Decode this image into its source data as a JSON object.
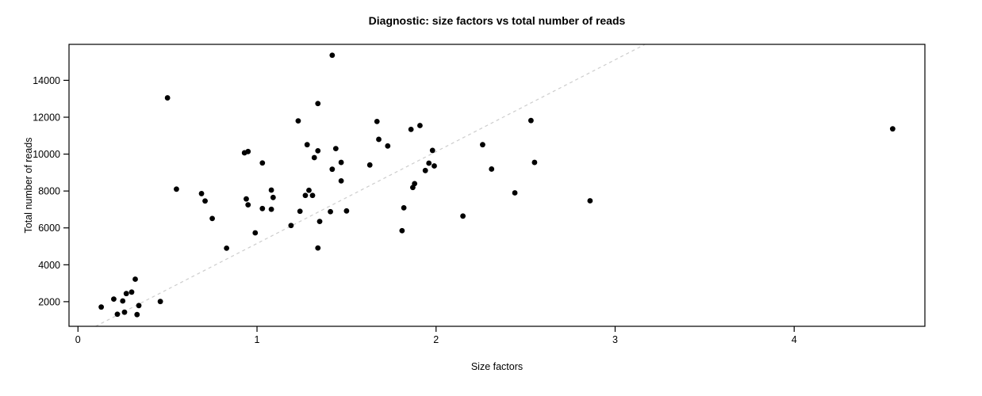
{
  "title": "Diagnostic: size factors vs total number of reads",
  "chart_data": {
    "type": "scatter",
    "title": "Diagnostic: size factors vs total number of reads",
    "xlabel": "Size factors",
    "ylabel": "Total number of reads",
    "xlim": [
      -0.05,
      4.73
    ],
    "ylim": [
      665,
      15950
    ],
    "x_ticks": [
      0,
      1,
      2,
      3,
      4
    ],
    "y_ticks": [
      2000,
      4000,
      6000,
      8000,
      10000,
      12000,
      14000
    ],
    "grid": false,
    "legend": "none",
    "point_color": "#000000",
    "point_radius": 3.4,
    "box_color": "#000000",
    "reference_line": {
      "style": "dashed",
      "color": "#cdcdcd",
      "intercept": 175,
      "slope": 4980
    },
    "points": [
      [
        0.13,
        1710
      ],
      [
        0.2,
        2140
      ],
      [
        0.25,
        2040
      ],
      [
        0.27,
        2440
      ],
      [
        0.3,
        2520
      ],
      [
        0.32,
        3220
      ],
      [
        0.34,
        1790
      ],
      [
        0.22,
        1320
      ],
      [
        0.26,
        1430
      ],
      [
        0.33,
        1300
      ],
      [
        0.46,
        2010
      ],
      [
        0.5,
        13050
      ],
      [
        0.55,
        8100
      ],
      [
        0.69,
        7860
      ],
      [
        0.71,
        7460
      ],
      [
        0.75,
        6510
      ],
      [
        0.83,
        4900
      ],
      [
        0.93,
        10070
      ],
      [
        0.95,
        10140
      ],
      [
        1.03,
        9520
      ],
      [
        0.94,
        7570
      ],
      [
        0.95,
        7250
      ],
      [
        0.99,
        5730
      ],
      [
        1.08,
        8050
      ],
      [
        1.09,
        7650
      ],
      [
        1.03,
        7050
      ],
      [
        1.08,
        7010
      ],
      [
        1.42,
        15360
      ],
      [
        1.34,
        12740
      ],
      [
        1.23,
        11800
      ],
      [
        1.28,
        10510
      ],
      [
        1.34,
        10180
      ],
      [
        1.32,
        9810
      ],
      [
        1.44,
        10300
      ],
      [
        1.47,
        9550
      ],
      [
        1.42,
        9180
      ],
      [
        1.47,
        8550
      ],
      [
        1.29,
        8040
      ],
      [
        1.27,
        7760
      ],
      [
        1.31,
        7760
      ],
      [
        1.24,
        6900
      ],
      [
        1.41,
        6880
      ],
      [
        1.5,
        6920
      ],
      [
        1.35,
        6350
      ],
      [
        1.19,
        6130
      ],
      [
        1.34,
        4910
      ],
      [
        1.63,
        9410
      ],
      [
        1.67,
        11770
      ],
      [
        1.68,
        10800
      ],
      [
        1.73,
        10440
      ],
      [
        1.86,
        11340
      ],
      [
        1.91,
        11550
      ],
      [
        1.98,
        10200
      ],
      [
        1.96,
        9510
      ],
      [
        1.99,
        9360
      ],
      [
        1.94,
        9110
      ],
      [
        1.88,
        8400
      ],
      [
        1.87,
        8190
      ],
      [
        2.26,
        10510
      ],
      [
        2.31,
        9190
      ],
      [
        2.15,
        6640
      ],
      [
        1.81,
        5850
      ],
      [
        1.82,
        7090
      ],
      [
        2.53,
        11820
      ],
      [
        2.55,
        9550
      ],
      [
        2.44,
        7900
      ],
      [
        2.86,
        7470
      ],
      [
        4.55,
        11370
      ]
    ]
  }
}
